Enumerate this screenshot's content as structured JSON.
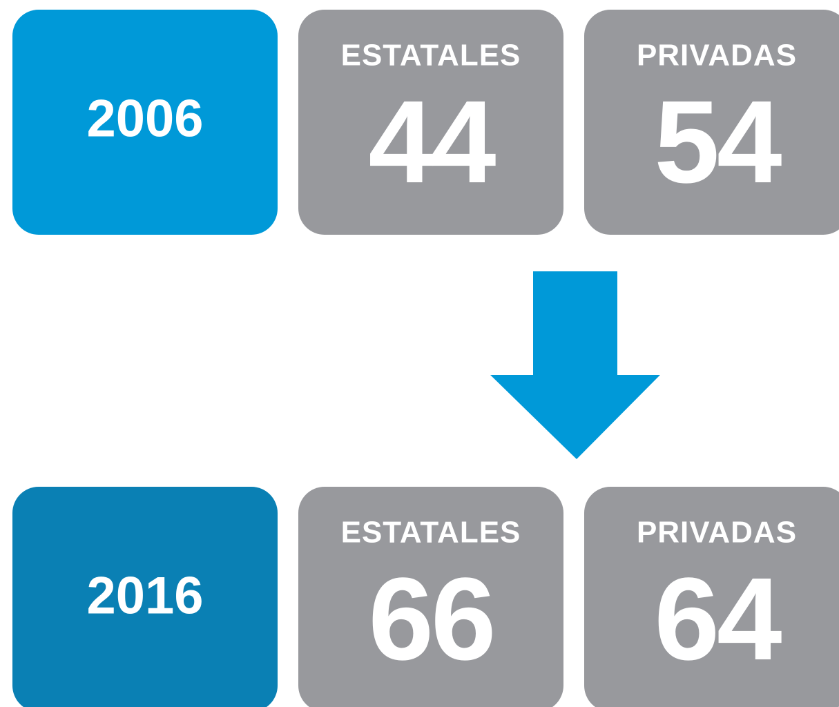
{
  "rows": [
    {
      "year": "2006",
      "items": [
        {
          "label": "ESTATALES",
          "value": 44
        },
        {
          "label": "PRIVADAS",
          "value": 54
        }
      ]
    },
    {
      "year": "2016",
      "items": [
        {
          "label": "ESTATALES",
          "value": 66
        },
        {
          "label": "PRIVADAS",
          "value": 64
        }
      ]
    }
  ]
}
